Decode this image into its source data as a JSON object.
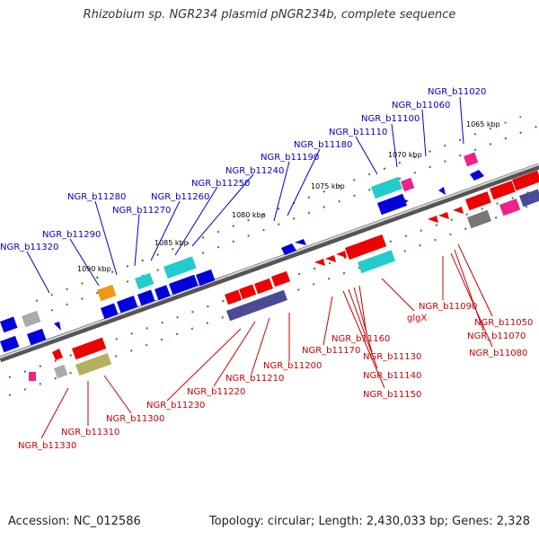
{
  "title": "Rhizobium sp. NGR234 plasmid pNGR234b, complete sequence",
  "footer": {
    "accession": "Accession: NC_012586",
    "topology": "Topology: circular; Length: 2,430,033 bp; Genes: 2,328"
  },
  "kbp_labels": [
    "1065 kbp",
    "1070 kbp",
    "1075 kbp",
    "1080 kbp",
    "1085 kbp",
    "1090 kbp"
  ],
  "genes_upper": [
    "NGR_b11020",
    "NGR_b11060",
    "NGR_b11100",
    "NGR_b11110",
    "NGR_b11180",
    "NGR_b11190",
    "NGR_b11240",
    "NGR_b11250",
    "NGR_b11260",
    "NGR_b11270",
    "NGR_b11280",
    "NGR_b11290",
    "NGR_b11320"
  ],
  "genes_lower": [
    "NGR_b11090",
    "glgX",
    "NGR_b11050",
    "NGR_b11070",
    "NGR_b11080",
    "NGR_b11160",
    "NGR_b11170",
    "NGR_b11130",
    "NGR_b11140",
    "NGR_b11150",
    "NGR_b11200",
    "NGR_b11210",
    "NGR_b11220",
    "NGR_b11230",
    "NGR_b11300",
    "NGR_b11310",
    "NGR_b11330"
  ],
  "colors": {
    "blue": "#0000dd",
    "red": "#ee0000",
    "cyan": "#22cccc",
    "purple": "#4a4a99",
    "gray": "#999999",
    "olive": "#b5b060",
    "orange": "#ee9911",
    "magenta": "#ee2288",
    "dot_green": "#228822"
  }
}
